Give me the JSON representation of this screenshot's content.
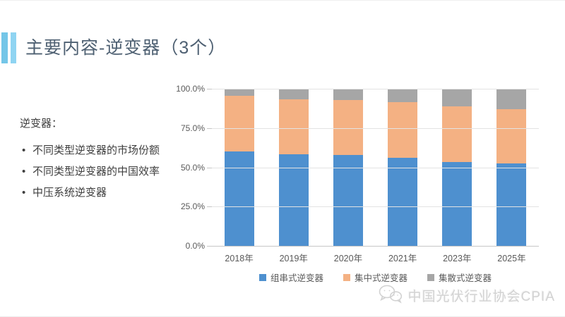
{
  "slide": {
    "title": "主要内容-逆变器（3个）"
  },
  "left_panel": {
    "heading": "逆变器：",
    "bullets": [
      "不同类型逆变器的市场份额",
      "不同类型逆变器的中国效率",
      "中压系统逆变器"
    ]
  },
  "chart_data": {
    "type": "bar",
    "stacked": true,
    "unit": "percent",
    "title": "",
    "xlabel": "",
    "ylabel": "",
    "ylim": [
      0,
      100
    ],
    "grid": true,
    "legend_position": "bottom",
    "categories": [
      "2018年",
      "2019年",
      "2020年",
      "2021年",
      "2023年",
      "2025年"
    ],
    "series": [
      {
        "name": "组串式逆变器",
        "color": "#4E90CF",
        "values": [
          60,
          58.5,
          58,
          56,
          53.5,
          52.5
        ]
      },
      {
        "name": "集中式逆变器",
        "color": "#F4B183",
        "values": [
          35.5,
          35,
          35,
          35.5,
          35.5,
          34.5
        ]
      },
      {
        "name": "集散式逆变器",
        "color": "#A6A6A6",
        "values": [
          4.5,
          6.5,
          7,
          8.5,
          11,
          13
        ]
      }
    ],
    "y_ticks": [
      "100.0%",
      "75.0%",
      "50.0%",
      "25.0%",
      "0.0%"
    ]
  },
  "watermark": {
    "icon": "wechat-icon",
    "text": "中国光伏行业协会CPIA"
  },
  "colors": {
    "title_text": "#4E6072",
    "accent_bar_1": "#74C6E8",
    "accent_bar_2": "#8FD4F2",
    "axis_text": "#595959",
    "gridline": "#E3E3E3",
    "watermark_text": "#D2D2D2"
  }
}
